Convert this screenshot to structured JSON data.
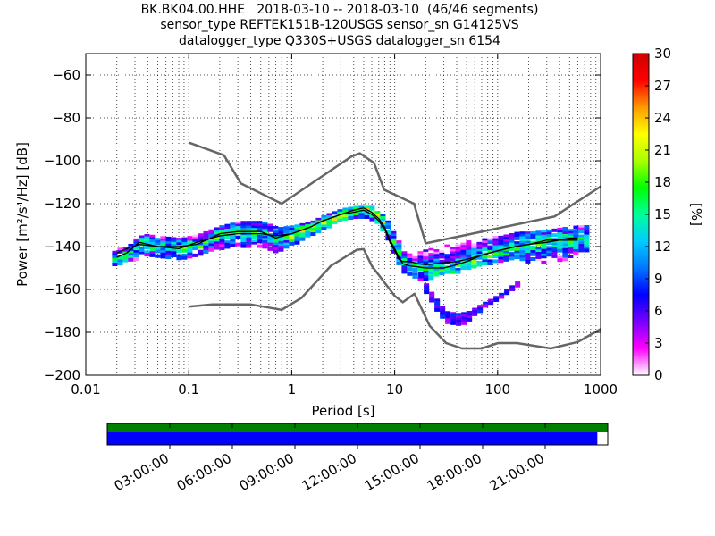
{
  "title": {
    "line1": "BK.BK04.00.HHE   2018-03-10 -- 2018-03-10  (46/46 segments)",
    "line2": "sensor_type REFTEK151B-120USGS sensor_sn G14125VS",
    "line3": "datalogger_type Q330S+USGS datalogger_sn 6154"
  },
  "colorbar": {
    "label": "[%]",
    "ticks": [
      "0",
      "3",
      "6",
      "9",
      "12",
      "15",
      "18",
      "21",
      "24",
      "27",
      "30"
    ],
    "range": [
      0,
      30
    ],
    "colors": [
      "#ffffff",
      "#ff00ff",
      "#7700ff",
      "#0000ff",
      "#0077ff",
      "#00ccff",
      "#00ff99",
      "#00ff00",
      "#aaff00",
      "#ffff00",
      "#ff9900",
      "#ff0000",
      "#cc0000"
    ]
  },
  "timeline": {
    "labels": [
      "03:00:00",
      "06:00:00",
      "09:00:00",
      "12:00:00",
      "15:00:00",
      "18:00:00",
      "21:00:00"
    ],
    "hours": [
      3,
      6,
      9,
      12,
      15,
      18,
      21
    ],
    "coverage_end_hour": 23.5,
    "top_color": "#008000",
    "bottom_color": "#0000ff"
  },
  "chart_data": {
    "type": "heatmap",
    "xlabel": "Period [s]",
    "ylabel": "Power [m²/s⁴/Hz] [dB]",
    "xscale": "log",
    "xlim": [
      0.01,
      1000
    ],
    "ylim": [
      -200,
      -50
    ],
    "x_tick_labels": [
      "0.01",
      "0.1",
      "1",
      "10",
      "100",
      "1000"
    ],
    "y_ticks": [
      -60,
      -80,
      -100,
      -120,
      -140,
      -160,
      -180,
      -200
    ],
    "grid": true,
    "nlnm": {
      "name": "NLNM",
      "x": [
        0.1,
        0.17,
        0.4,
        0.8,
        1.24,
        2.4,
        4.3,
        5.0,
        6.0,
        10.0,
        12.0,
        15.6,
        21.9,
        31.6,
        45.0,
        70.0,
        101,
        154,
        328,
        600,
        1000
      ],
      "y": [
        -168,
        -167,
        -167,
        -169.5,
        -164,
        -149,
        -141.5,
        -141.2,
        -149,
        -163,
        -166,
        -162,
        -177,
        -185,
        -187.5,
        -187.5,
        -185,
        -185,
        -187.5,
        -184.5,
        -178.5
      ]
    },
    "nhnm": {
      "name": "NHNM",
      "x": [
        0.1,
        0.22,
        0.32,
        0.8,
        3.8,
        4.6,
        6.3,
        7.9,
        15.4,
        20.0,
        354.8,
        1000
      ],
      "y": [
        -91.5,
        -97.4,
        -110.5,
        -120,
        -98,
        -96.5,
        -101,
        -113.5,
        -120,
        -138.5,
        -126,
        -112
      ]
    },
    "mode_curve": {
      "x": [
        0.02,
        0.025,
        0.033,
        0.05,
        0.08,
        0.12,
        0.2,
        0.3,
        0.5,
        0.7,
        1.0,
        1.5,
        2.0,
        3.0,
        4.0,
        5.0,
        6.0,
        7.0,
        8.0,
        9.0,
        10.0,
        11.0,
        12.0,
        14.0,
        17.0,
        20.0,
        25.0,
        30.0,
        40.0,
        50.0,
        70.0,
        100.0,
        150.0,
        200.0,
        300.0,
        400.0,
        500.0,
        600.0
      ],
      "y": [
        -145,
        -143,
        -138,
        -140,
        -140,
        -139,
        -134,
        -133,
        -133,
        -136,
        -134,
        -131,
        -128,
        -125,
        -123,
        -122,
        -124,
        -127,
        -131,
        -137,
        -141,
        -145,
        -148,
        -149,
        -149.5,
        -150,
        -150,
        -150,
        -148.5,
        -147,
        -144,
        -142,
        -140,
        -139,
        -137,
        -137,
        -136,
        -136
      ]
    },
    "mean_curve": {
      "x": [
        0.02,
        0.025,
        0.033,
        0.05,
        0.08,
        0.12,
        0.2,
        0.3,
        0.5,
        0.7,
        1.0,
        1.5,
        2.0,
        3.0,
        4.0,
        5.0,
        6.0,
        7.0,
        8.0,
        9.0,
        10.0,
        11.0,
        12.0,
        14.0,
        17.0,
        20.0,
        25.0,
        30.0,
        40.0,
        50.0,
        70.0,
        100.0,
        150.0,
        200.0,
        300.0,
        400.0,
        500.0,
        600.0
      ],
      "y": [
        -143,
        -141,
        -139,
        -140,
        -141,
        -138,
        -135,
        -134,
        -134,
        -135,
        -134,
        -131,
        -128,
        -125,
        -124,
        -123,
        -125,
        -128,
        -132,
        -138,
        -142,
        -146,
        -147,
        -147,
        -148,
        -148.5,
        -148,
        -147.5,
        -147,
        -146,
        -144,
        -142,
        -140,
        -139,
        -138,
        -137,
        -137,
        -137
      ]
    },
    "main_band": {
      "x": [
        0.018,
        0.025,
        0.035,
        0.05,
        0.08,
        0.12,
        0.2,
        0.3,
        0.5,
        0.7,
        1.0,
        1.5,
        2.0,
        3.0,
        4.0,
        5.0,
        6.0,
        7.0,
        8.0,
        9.0,
        10.0,
        11.0,
        12.0,
        14.0,
        17.0,
        20.0,
        25.0,
        30.0,
        40.0,
        50.0,
        70.0,
        100.0,
        150.0,
        200.0,
        300.0,
        400.0,
        600.0
      ],
      "ytop": [
        -142,
        -138,
        -134,
        -135,
        -136,
        -134,
        -130,
        -128,
        -128,
        -131,
        -130,
        -128,
        -125,
        -122,
        -121,
        -121,
        -121,
        -124,
        -127,
        -132,
        -136,
        -139,
        -142,
        -144,
        -142,
        -141,
        -140,
        -139,
        -139,
        -137,
        -135,
        -135,
        -133,
        -133,
        -132,
        -131,
        -130
      ],
      "ybot": [
        -148,
        -146,
        -144,
        -144,
        -145,
        -143,
        -140,
        -139,
        -139,
        -142,
        -138,
        -134,
        -131,
        -127,
        -126,
        -126,
        -127,
        -131,
        -135,
        -141,
        -146,
        -150,
        -152,
        -153,
        -155,
        -155,
        -153,
        -152,
        -151,
        -150,
        -148,
        -146,
        -145,
        -147,
        -147,
        -146,
        -142
      ]
    },
    "low_band": {
      "x": [
        17.0,
        20.0,
        25.0,
        30.0,
        40.0,
        50.0,
        70.0,
        100.0,
        150.0
      ],
      "ytop": [
        -152,
        -159,
        -165,
        -170,
        -171,
        -170,
        -166,
        -162,
        -156
      ],
      "ybot": [
        -154,
        -163,
        -170,
        -175,
        -176,
        -174,
        -168,
        -164,
        -158
      ]
    }
  }
}
